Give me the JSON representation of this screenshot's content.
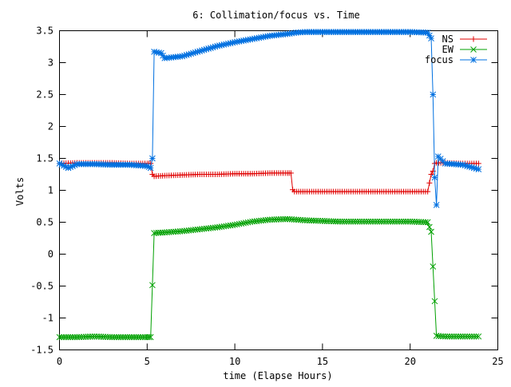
{
  "chart_data": {
    "type": "line",
    "title": "6: Collimation/focus vs. Time",
    "xlabel": "time (Elapse Hours)",
    "ylabel": "Volts",
    "xlim": [
      0,
      25
    ],
    "ylim": [
      -1.5,
      3.5
    ],
    "x_ticks": [
      0,
      5,
      10,
      15,
      20,
      25
    ],
    "y_ticks": [
      -1.5,
      -1,
      -0.5,
      0,
      0.5,
      1,
      1.5,
      2,
      2.5,
      3,
      3.5
    ],
    "x_tick_labels": [
      "0",
      "5",
      "10",
      "15",
      "20",
      "25"
    ],
    "y_tick_labels": [
      "-1.5",
      "-1",
      "-0.5",
      "0",
      "0.5",
      "1",
      "1.5",
      "2",
      "2.5",
      "3",
      "3.5"
    ],
    "grid": false,
    "legend_position": "top-right",
    "series": [
      {
        "name": "NS",
        "color": "#e00000",
        "marker": "plus",
        "x": [
          0,
          1,
          2,
          3,
          4,
          5,
          5.2,
          5.3,
          5.4,
          6,
          7,
          8,
          9,
          10,
          11,
          12,
          13,
          13.2,
          13.3,
          13.4,
          14,
          15,
          16,
          17,
          18,
          19,
          20,
          21,
          21.2,
          21.3,
          21.4,
          21.5,
          22,
          23,
          23.9
        ],
        "y": [
          1.42,
          1.43,
          1.43,
          1.43,
          1.42,
          1.42,
          1.42,
          1.25,
          1.22,
          1.23,
          1.24,
          1.25,
          1.25,
          1.26,
          1.26,
          1.27,
          1.27,
          1.27,
          1.01,
          0.98,
          0.98,
          0.98,
          0.98,
          0.98,
          0.98,
          0.98,
          0.98,
          0.98,
          1.25,
          1.3,
          1.42,
          1.43,
          1.43,
          1.42,
          1.42
        ]
      },
      {
        "name": "EW",
        "color": "#00a000",
        "marker": "cross",
        "x": [
          0,
          1,
          2,
          3,
          4,
          5,
          5.2,
          5.4,
          6,
          7,
          8,
          9,
          10,
          11,
          12,
          13,
          14,
          15,
          16,
          17,
          18,
          19,
          20,
          21,
          21.2,
          21.5,
          22,
          23,
          23.9
        ],
        "y": [
          -1.3,
          -1.3,
          -1.29,
          -1.3,
          -1.3,
          -1.3,
          -1.3,
          0.33,
          0.34,
          0.36,
          0.39,
          0.42,
          0.46,
          0.51,
          0.54,
          0.55,
          0.53,
          0.52,
          0.51,
          0.51,
          0.51,
          0.51,
          0.51,
          0.5,
          0.35,
          -1.28,
          -1.29,
          -1.29,
          -1.29
        ]
      },
      {
        "name": "focus",
        "color": "#0070e0",
        "marker": "star",
        "x": [
          0,
          0.5,
          1,
          2,
          3,
          4,
          5,
          5.2,
          5.3,
          5.4,
          5.8,
          6,
          7,
          8,
          9,
          10,
          11,
          12,
          13,
          13.5,
          14,
          15,
          16,
          17,
          18,
          19,
          20,
          21,
          21.2,
          21.3,
          21.4,
          21.5,
          21.6,
          22,
          23,
          23.9
        ],
        "y": [
          1.42,
          1.35,
          1.41,
          1.41,
          1.4,
          1.4,
          1.38,
          1.35,
          1.5,
          3.17,
          3.15,
          3.07,
          3.1,
          3.18,
          3.26,
          3.32,
          3.37,
          3.42,
          3.45,
          3.47,
          3.48,
          3.48,
          3.48,
          3.48,
          3.48,
          3.48,
          3.48,
          3.47,
          3.38,
          2.5,
          1.2,
          0.77,
          1.53,
          1.42,
          1.4,
          1.33
        ]
      }
    ]
  }
}
